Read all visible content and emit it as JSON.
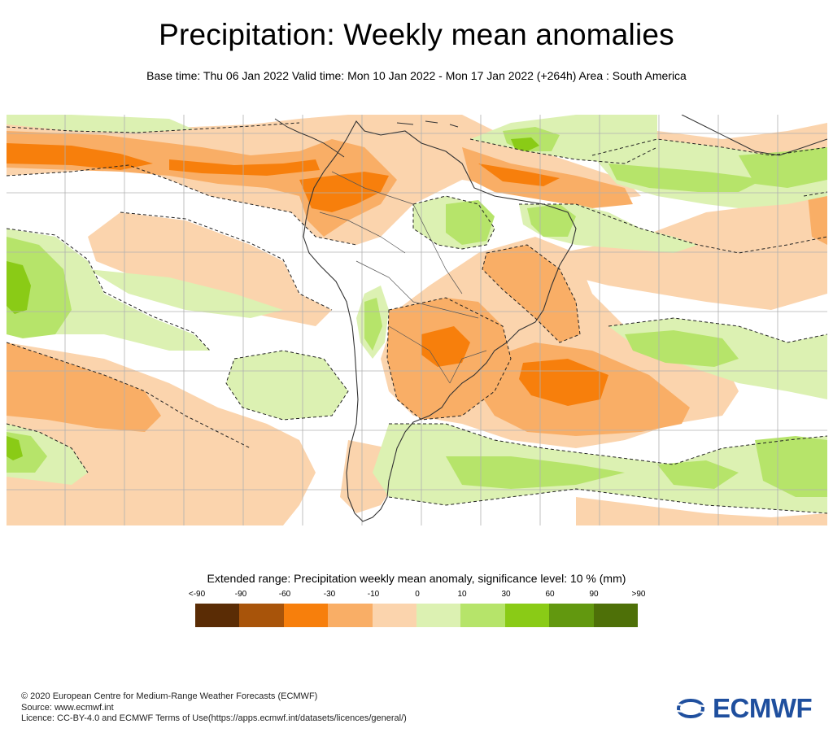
{
  "header": {
    "title": "Precipitation: Weekly mean anomalies",
    "subtitle": "Base time: Thu 06 Jan 2022 Valid time: Mon 10 Jan 2022 - Mon 17 Jan 2022 (+264h) Area : South America"
  },
  "legend": {
    "title": "Extended range: Precipitation weekly mean anomaly, significance level: 10 % (mm)",
    "labels": [
      "<-90",
      "-90",
      "-60",
      "-30",
      "-10",
      "0",
      "10",
      "30",
      "60",
      "90",
      ">90"
    ],
    "colors": [
      "#5a2c05",
      "#a8540a",
      "#f77f0c",
      "#f9ae66",
      "#fbd4ad",
      "#dcf1b2",
      "#b6e46a",
      "#8acb16",
      "#62980f",
      "#4e7008"
    ]
  },
  "map_colors": {
    "neg_light": "#fbd4ad",
    "neg_mid": "#f9ae66",
    "neg_strong": "#f77f0c",
    "pos_light": "#dcf1b2",
    "pos_mid": "#b6e46a",
    "pos_strong": "#8acb16",
    "coast": "#333333",
    "grid": "#b0b0b0"
  },
  "footer": {
    "copyright": "© 2020 European Centre for Medium-Range Weather Forecasts (ECMWF)",
    "source": "Source: www.ecmwf.int",
    "licence": "Licence: CC-BY-4.0 and ECMWF Terms of Use(https://apps.ecmwf.int/datasets/licences/general/)"
  },
  "logo": {
    "text": "ECMWF",
    "color": "#1f4f9e"
  }
}
